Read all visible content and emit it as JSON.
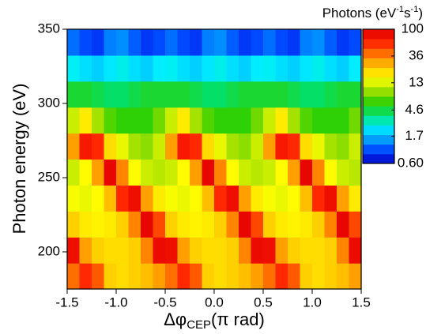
{
  "chart_data": {
    "type": "heatmap",
    "xlabel": [
      "Δφ",
      "CEP",
      "(π rad)"
    ],
    "ylabel": "Photon energy (eV)",
    "colorbar_label": [
      "Photons (eV",
      "-1",
      "s",
      "-1",
      ")"
    ],
    "xlim": [
      -1.5,
      1.5
    ],
    "xticks": [
      -1.5,
      {
        "value": -1,
        "label": "-1.0"
      },
      -0.5,
      {
        "value": 0,
        "label": "0.0"
      },
      0.5,
      {
        "value": 1,
        "label": "1.0"
      },
      1.5
    ],
    "ylim": [
      175,
      350
    ],
    "yticks": [
      200,
      250,
      300,
      350
    ],
    "clim": [
      0.6,
      100
    ],
    "log_color": true,
    "cticks": [
      {
        "value": 0.6,
        "label": "0.60"
      },
      1.7,
      4.6,
      13,
      36,
      100
    ],
    "colors": [
      "#0000c0",
      "#0040ff",
      "#00a0ff",
      "#00f0ff",
      "#00e070",
      "#30d000",
      "#a0e000",
      "#ffff00",
      "#ffc000",
      "#ff7000",
      "#ff2000",
      "#e00000"
    ],
    "x": [
      -1.4375,
      -1.3125,
      -1.1875,
      -1.0625,
      -0.9375,
      -0.8125,
      -0.6875,
      -0.5625,
      -0.4375,
      -0.3125,
      -0.1875,
      -0.0625,
      0.0625,
      0.1875,
      0.3125,
      0.4375,
      0.5625,
      0.6875,
      0.8125,
      0.9375,
      1.0625,
      1.1875,
      1.3125,
      1.4375
    ],
    "y": [
      183.75,
      201.25,
      218.75,
      236.25,
      253.75,
      271.25,
      288.75,
      306.25,
      323.75,
      341.25
    ],
    "z": [
      [
        40,
        60,
        45,
        22,
        20,
        22,
        25,
        30,
        40,
        60,
        45,
        22,
        20,
        22,
        25,
        30,
        40,
        60,
        45,
        22,
        20,
        22,
        25,
        30
      ],
      [
        80,
        30,
        22,
        20,
        20,
        22,
        35,
        85,
        80,
        30,
        22,
        20,
        20,
        22,
        35,
        85,
        80,
        30,
        22,
        20,
        20,
        22,
        35,
        85
      ],
      [
        22,
        18,
        17,
        18,
        22,
        35,
        90,
        50,
        22,
        18,
        17,
        18,
        22,
        35,
        90,
        50,
        22,
        18,
        17,
        18,
        22,
        35,
        90,
        50
      ],
      [
        15,
        14,
        16,
        25,
        60,
        80,
        30,
        18,
        15,
        14,
        16,
        25,
        60,
        80,
        30,
        18,
        15,
        14,
        16,
        25,
        60,
        80,
        30,
        18
      ],
      [
        12,
        16,
        30,
        90,
        35,
        16,
        12,
        11,
        12,
        16,
        30,
        90,
        35,
        16,
        12,
        11,
        12,
        16,
        30,
        90,
        35,
        16,
        12,
        11
      ],
      [
        30,
        70,
        60,
        20,
        14,
        10,
        9,
        12,
        30,
        70,
        60,
        20,
        14,
        10,
        9,
        12,
        30,
        70,
        60,
        20,
        14,
        10,
        9,
        12
      ],
      [
        12,
        18,
        10,
        7,
        6,
        6,
        6,
        8,
        12,
        18,
        10,
        7,
        6,
        6,
        6,
        8,
        12,
        18,
        10,
        7,
        6,
        6,
        6,
        8
      ],
      [
        5,
        5,
        4.5,
        4,
        4,
        4.5,
        5,
        5,
        5,
        5,
        4.5,
        4,
        4,
        4.5,
        5,
        5,
        5,
        5,
        4.5,
        4,
        4,
        4.5,
        5,
        5
      ],
      [
        2.5,
        2.2,
        2,
        2.3,
        2.6,
        2.2,
        2,
        2.4,
        2.5,
        2.2,
        2,
        2.3,
        2.6,
        2.2,
        2,
        2.4,
        2.5,
        2.2,
        2,
        2.3,
        2.6,
        2.2,
        2,
        2.4
      ],
      [
        1.2,
        1,
        0.9,
        1.3,
        1.4,
        1.1,
        0.9,
        1,
        1.2,
        1,
        0.9,
        1.3,
        1.4,
        1.1,
        0.9,
        1,
        1.2,
        1,
        0.9,
        1.3,
        1.4,
        1.1,
        0.9,
        1
      ]
    ]
  }
}
